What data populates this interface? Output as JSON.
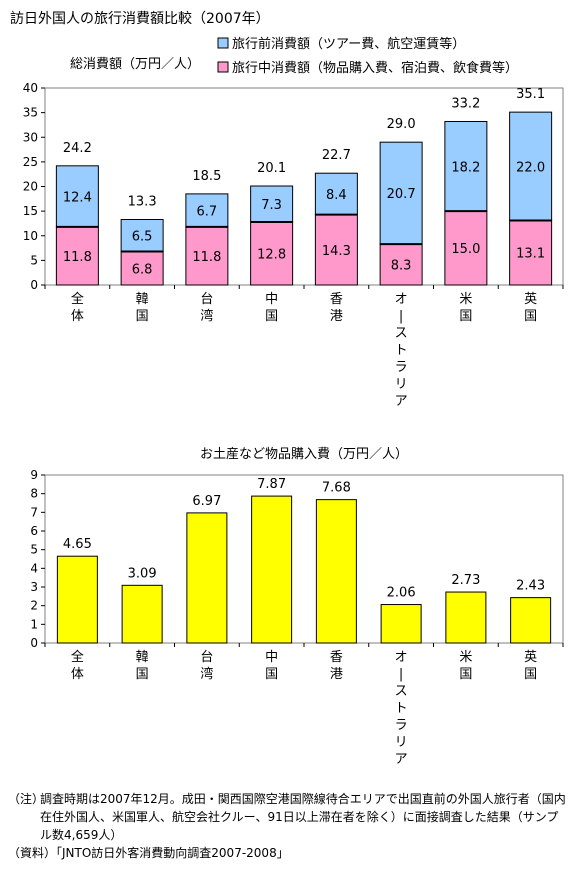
{
  "title": "訪日外国人の旅行消費額比較（2007年）",
  "chart_data": [
    {
      "type": "bar",
      "stacked": true,
      "ylabel": "総消費額（万円／人）",
      "ylim": [
        0,
        40
      ],
      "yticks": [
        0,
        5,
        10,
        15,
        20,
        25,
        30,
        35,
        40
      ],
      "grid": false,
      "legend": "top-right",
      "categories": [
        "全体",
        "韓国",
        "台湾",
        "中国",
        "香港",
        "オーストラリア",
        "米国",
        "英国"
      ],
      "series": [
        {
          "name": "旅行中消費額（物品購入費、宿泊費、飲食費等）",
          "color": "#ff99cc",
          "values": [
            11.8,
            6.8,
            11.8,
            12.8,
            14.3,
            8.3,
            15.0,
            13.1
          ],
          "labels": [
            "11.8",
            "6.8",
            "11.8",
            "12.8",
            "14.3",
            "8.3",
            "15.0",
            "13.1"
          ]
        },
        {
          "name": "旅行前消費額（ツアー費、航空運賃等）",
          "color": "#99ccff",
          "values": [
            12.4,
            6.5,
            6.7,
            7.3,
            8.4,
            20.7,
            18.2,
            22.0
          ],
          "labels": [
            "12.4",
            "6.5",
            "6.7",
            "7.3",
            "8.4",
            "20.7",
            "18.2",
            "22.0"
          ]
        }
      ],
      "totals": [
        24.2,
        13.3,
        18.5,
        20.1,
        22.7,
        29.0,
        33.2,
        35.1
      ],
      "total_labels": [
        "24.2",
        "13.3",
        "18.5",
        "20.1",
        "22.7",
        "29.0",
        "33.2",
        "35.1"
      ]
    },
    {
      "type": "bar",
      "title": "お土産など物品購入費（万円／人）",
      "ylim": [
        0,
        9
      ],
      "yticks": [
        0,
        1,
        2,
        3,
        4,
        5,
        6,
        7,
        8,
        9
      ],
      "grid": false,
      "categories": [
        "全体",
        "韓国",
        "台湾",
        "中国",
        "香港",
        "オーストラリア",
        "米国",
        "英国"
      ],
      "color": "#ffff00",
      "values": [
        4.65,
        3.09,
        6.97,
        7.87,
        7.68,
        2.06,
        2.73,
        2.43
      ],
      "labels": [
        "4.65",
        "3.09",
        "6.97",
        "7.87",
        "7.68",
        "2.06",
        "2.73",
        "2.43"
      ]
    }
  ],
  "notes": {
    "note_label": "（注）",
    "note_text": "調査時期は2007年12月。成田・関西国際空港国際線待合エリアで出国直前の外国人旅行者（国内在住外国人、米国軍人、航空会社クルー、91日以上滞在者を除く）に面接調査した結果（サンプル数4,659人）",
    "source": "（資料）「JNTO訪日外客消費動向調査2007-2008」"
  }
}
